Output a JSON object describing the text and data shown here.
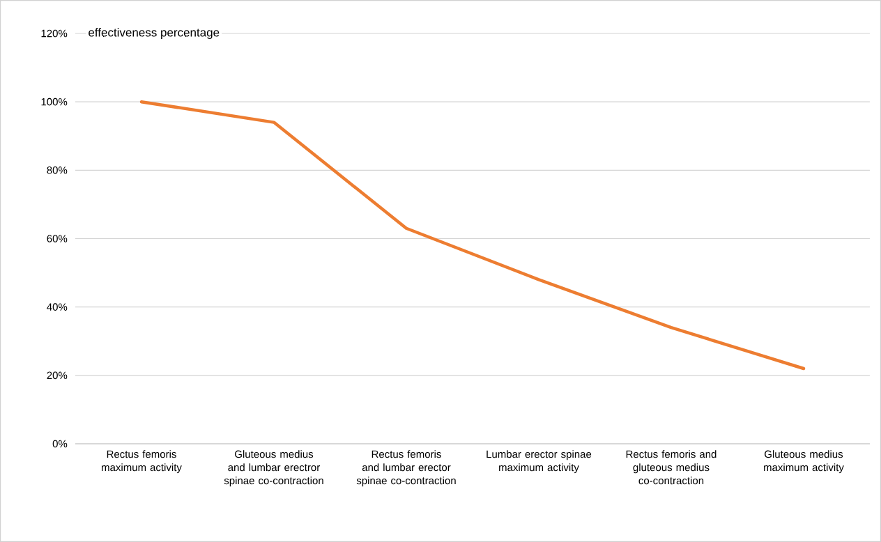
{
  "chart_data": {
    "type": "line",
    "title": "effectiveness percentage",
    "categories": [
      "Rectus femoris maximum activity",
      "Gluteous medius and lumbar erectror spinae co-contraction",
      "Rectus femoris and lumbar erector spinae co-contraction",
      "Lumbar erector spinae maximum activity",
      "Rectus femoris and gluteous medius co-contraction",
      "Gluteous medius maximum activity"
    ],
    "series": [
      {
        "color": "#ed7d31",
        "values": [
          100,
          94,
          63,
          48,
          34,
          22
        ]
      }
    ],
    "ylim": [
      0,
      120
    ],
    "yticks": [
      {
        "value": 0,
        "label": "0%"
      },
      {
        "value": 20,
        "label": "20%"
      },
      {
        "value": 40,
        "label": "40%"
      },
      {
        "value": 60,
        "label": "60%"
      },
      {
        "value": 80,
        "label": "80%"
      },
      {
        "value": 100,
        "label": "100%"
      },
      {
        "value": 120,
        "label": "120%"
      }
    ],
    "grid": "y",
    "legend": false,
    "marker": "none",
    "line_style": "solid"
  }
}
